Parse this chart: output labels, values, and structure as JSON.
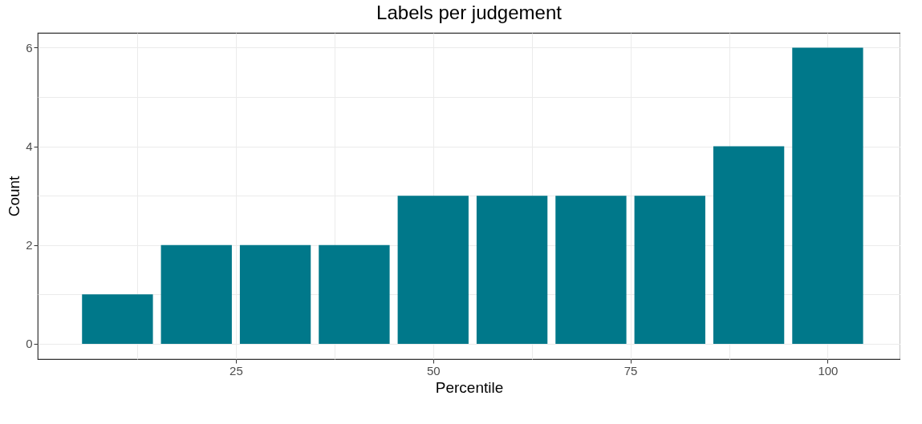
{
  "chart_data": {
    "type": "bar",
    "title": "Labels per judgement",
    "xlabel": "Percentile",
    "ylabel": "Count",
    "x": [
      10,
      20,
      30,
      40,
      50,
      60,
      70,
      80,
      90,
      100
    ],
    "values": [
      1,
      2,
      2,
      2,
      3,
      3,
      3,
      3,
      4,
      6
    ],
    "color": "#00788a",
    "xlim": [
      0.4,
      108.7
    ],
    "xticks": [
      {
        "value": 12.5,
        "label": null
      },
      25,
      {
        "value": 37.5,
        "label": null
      },
      50,
      {
        "value": 62.5,
        "label": null
      },
      75,
      {
        "value": 87.5,
        "label": null
      },
      100
    ],
    "ylim": [
      -0.31,
      6.3
    ],
    "yticks": [
      0,
      {
        "value": 1,
        "label": null
      },
      2,
      {
        "value": 3,
        "label": null
      },
      4,
      {
        "value": 5,
        "label": null
      },
      6
    ],
    "grid": true
  }
}
